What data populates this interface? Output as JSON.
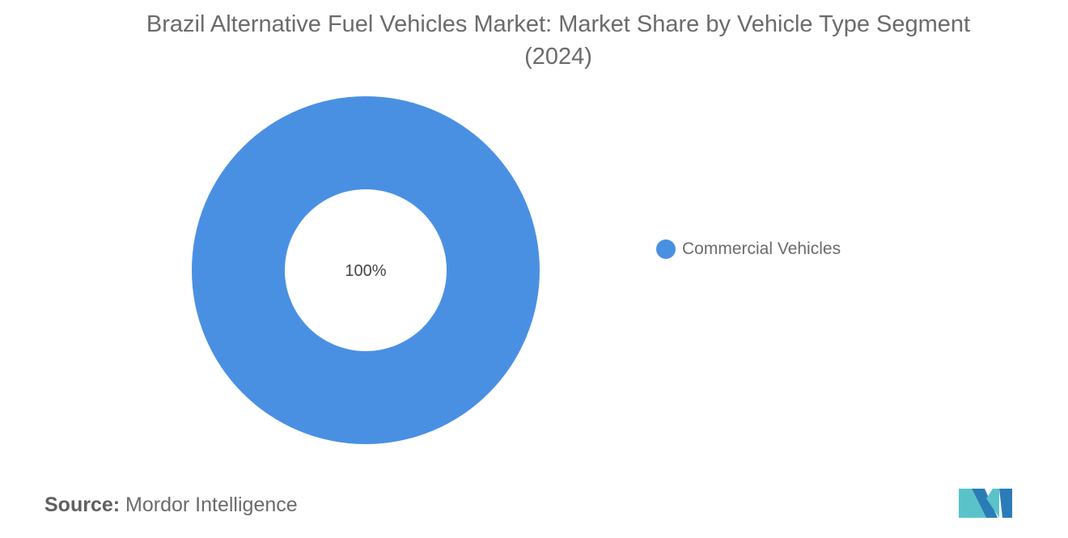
{
  "title": "Brazil Alternative Fuel Vehicles Market: Market Share by Vehicle Type Segment",
  "subtitle": "(2024)",
  "chart_data": {
    "type": "pie",
    "variant": "donut",
    "title": "Brazil Alternative Fuel Vehicles Market: Market Share by Vehicle Type Segment (2024)",
    "slices": [
      {
        "label": "Commercial Vehicles",
        "value": 100,
        "display": "100%",
        "color": "#4a90e2"
      }
    ],
    "legend_placement": "right"
  },
  "legend": {
    "items": [
      {
        "label": "Commercial Vehicles",
        "color": "#4a90e2"
      }
    ]
  },
  "footer": {
    "source_label": "Source:",
    "source_value": "Mordor Intelligence"
  },
  "logo": {
    "icon": "mordor-intelligence-logo",
    "colors": [
      "#2b7cb6",
      "#5ac3c9"
    ]
  }
}
